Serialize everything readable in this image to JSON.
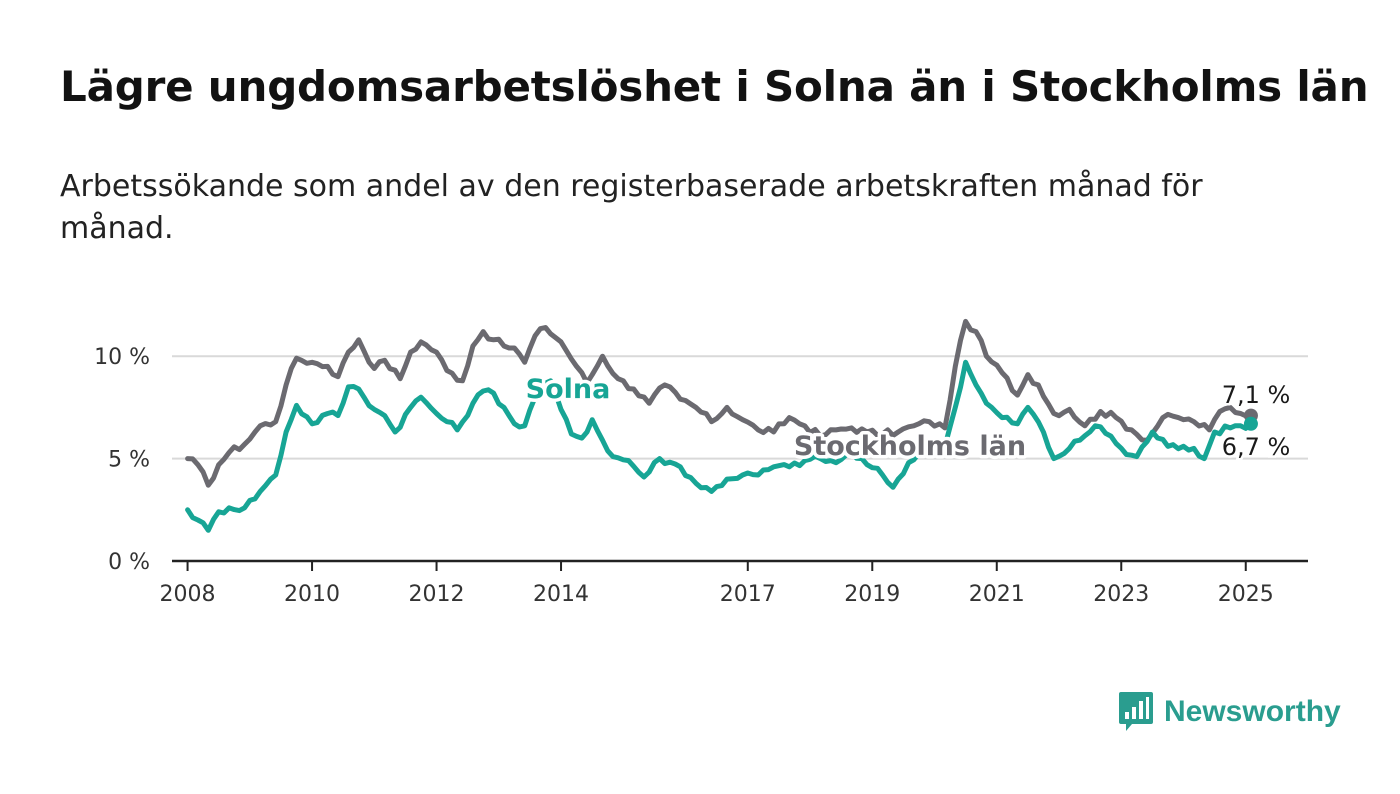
{
  "header": {
    "title": "Lägre ungdomsarbetslöshet i Solna än i Stockholms län",
    "subtitle": "Arbetssökande som andel av den registerbaserade arbetskraften månad för månad."
  },
  "brand": {
    "name": "Newsworthy",
    "icon": "bar-chart-icon",
    "color": "#2a9d8f"
  },
  "chart_data": {
    "type": "line",
    "title": "Lägre ungdomsarbetslöshet i Solna än i Stockholms län",
    "subtitle": "Arbetssökande som andel av den registerbaserade arbetskraften månad för månad.",
    "x_start": "2008-01",
    "xlim": [
      2007.75,
      2026.0
    ],
    "ylim": [
      0,
      12.5
    ],
    "y_ticks": [
      0,
      5,
      10
    ],
    "y_tick_labels": [
      "0 %",
      "5 %",
      "10 %"
    ],
    "x_ticks": [
      2008,
      2010,
      2012,
      2014,
      2017,
      2019,
      2021,
      2023,
      2025
    ],
    "x_tick_labels": [
      "2008",
      "2010",
      "2012",
      "2014",
      "2017",
      "2019",
      "2021",
      "2023",
      "2025"
    ],
    "grid": true,
    "legend": "inline labels",
    "end_labels": [
      "7,1 %",
      "6,7 %"
    ],
    "series": [
      {
        "name": "Stockholms län",
        "color": "#6b6a70",
        "anchors": [
          [
            "2008-01",
            5.0
          ],
          [
            "2008-03",
            4.7
          ],
          [
            "2008-05",
            3.7
          ],
          [
            "2008-07",
            4.7
          ],
          [
            "2008-09",
            5.3
          ],
          [
            "2008-12",
            5.7
          ],
          [
            "2009-03",
            6.6
          ],
          [
            "2009-06",
            6.8
          ],
          [
            "2009-08",
            8.6
          ],
          [
            "2009-10",
            9.9
          ],
          [
            "2010-01",
            9.7
          ],
          [
            "2010-04",
            9.5
          ],
          [
            "2010-06",
            9.0
          ],
          [
            "2010-08",
            10.2
          ],
          [
            "2010-10",
            10.8
          ],
          [
            "2011-01",
            9.4
          ],
          [
            "2011-03",
            9.8
          ],
          [
            "2011-06",
            8.9
          ],
          [
            "2011-08",
            10.2
          ],
          [
            "2011-10",
            10.7
          ],
          [
            "2012-01",
            10.2
          ],
          [
            "2012-03",
            9.3
          ],
          [
            "2012-06",
            8.8
          ],
          [
            "2012-08",
            10.5
          ],
          [
            "2012-10",
            11.2
          ],
          [
            "2012-12",
            10.8
          ],
          [
            "2013-02",
            10.5
          ],
          [
            "2013-04",
            10.4
          ],
          [
            "2013-06",
            9.7
          ],
          [
            "2013-08",
            11.0
          ],
          [
            "2013-10",
            11.4
          ],
          [
            "2014-01",
            10.7
          ],
          [
            "2014-04",
            9.5
          ],
          [
            "2014-06",
            8.7
          ],
          [
            "2014-09",
            10.0
          ],
          [
            "2014-12",
            8.9
          ],
          [
            "2015-03",
            8.4
          ],
          [
            "2015-06",
            7.7
          ],
          [
            "2015-09",
            8.6
          ],
          [
            "2015-12",
            7.9
          ],
          [
            "2016-03",
            7.5
          ],
          [
            "2016-06",
            6.8
          ],
          [
            "2016-09",
            7.5
          ],
          [
            "2016-12",
            6.9
          ],
          [
            "2017-03",
            6.4
          ],
          [
            "2017-06",
            6.3
          ],
          [
            "2017-09",
            7.0
          ],
          [
            "2017-12",
            6.6
          ],
          [
            "2018-03",
            6.1
          ],
          [
            "2018-06",
            6.4
          ],
          [
            "2018-09",
            6.5
          ],
          [
            "2018-12",
            6.3
          ],
          [
            "2019-03",
            6.2
          ],
          [
            "2019-06",
            6.3
          ],
          [
            "2019-09",
            6.6
          ],
          [
            "2019-12",
            6.8
          ],
          [
            "2020-03",
            6.5
          ],
          [
            "2020-05",
            9.5
          ],
          [
            "2020-07",
            11.7
          ],
          [
            "2020-09",
            11.2
          ],
          [
            "2020-11",
            10.0
          ],
          [
            "2021-02",
            9.2
          ],
          [
            "2021-05",
            8.1
          ],
          [
            "2021-07",
            9.1
          ],
          [
            "2021-09",
            8.6
          ],
          [
            "2021-12",
            7.2
          ],
          [
            "2022-03",
            7.4
          ],
          [
            "2022-06",
            6.6
          ],
          [
            "2022-09",
            7.3
          ],
          [
            "2022-12",
            7.0
          ],
          [
            "2023-03",
            6.4
          ],
          [
            "2023-06",
            5.9
          ],
          [
            "2023-09",
            7.0
          ],
          [
            "2023-12",
            7.0
          ],
          [
            "2024-03",
            6.8
          ],
          [
            "2024-06",
            6.4
          ],
          [
            "2024-08",
            7.3
          ],
          [
            "2024-10",
            7.5
          ],
          [
            "2024-12",
            7.2
          ],
          [
            "2025-02",
            7.1
          ]
        ]
      },
      {
        "name": "Solna",
        "color": "#17a595",
        "anchors": [
          [
            "2008-01",
            2.5
          ],
          [
            "2008-03",
            2.0
          ],
          [
            "2008-05",
            1.5
          ],
          [
            "2008-07",
            2.4
          ],
          [
            "2008-09",
            2.6
          ],
          [
            "2008-12",
            2.6
          ],
          [
            "2009-03",
            3.4
          ],
          [
            "2009-06",
            4.2
          ],
          [
            "2009-08",
            6.3
          ],
          [
            "2009-10",
            7.6
          ],
          [
            "2010-01",
            6.7
          ],
          [
            "2010-04",
            7.2
          ],
          [
            "2010-06",
            7.1
          ],
          [
            "2010-08",
            8.5
          ],
          [
            "2010-10",
            8.4
          ],
          [
            "2011-01",
            7.4
          ],
          [
            "2011-03",
            7.1
          ],
          [
            "2011-05",
            6.3
          ],
          [
            "2011-08",
            7.5
          ],
          [
            "2011-10",
            8.0
          ],
          [
            "2012-01",
            7.2
          ],
          [
            "2012-03",
            6.8
          ],
          [
            "2012-05",
            6.4
          ],
          [
            "2012-08",
            7.7
          ],
          [
            "2012-10",
            8.3
          ],
          [
            "2012-12",
            8.2
          ],
          [
            "2013-02",
            7.5
          ],
          [
            "2013-04",
            6.7
          ],
          [
            "2013-06",
            6.6
          ],
          [
            "2013-08",
            8.0
          ],
          [
            "2013-11",
            8.8
          ],
          [
            "2014-01",
            7.4
          ],
          [
            "2014-03",
            6.2
          ],
          [
            "2014-05",
            6.0
          ],
          [
            "2014-07",
            6.9
          ],
          [
            "2014-09",
            5.9
          ],
          [
            "2014-11",
            5.1
          ],
          [
            "2015-02",
            4.9
          ],
          [
            "2015-05",
            4.1
          ],
          [
            "2015-08",
            5.0
          ],
          [
            "2015-12",
            4.6
          ],
          [
            "2016-03",
            3.8
          ],
          [
            "2016-06",
            3.4
          ],
          [
            "2016-09",
            4.0
          ],
          [
            "2016-12",
            4.2
          ],
          [
            "2017-03",
            4.2
          ],
          [
            "2017-06",
            4.6
          ],
          [
            "2017-09",
            4.6
          ],
          [
            "2017-12",
            4.9
          ],
          [
            "2018-03",
            5.0
          ],
          [
            "2018-06",
            4.8
          ],
          [
            "2018-09",
            5.3
          ],
          [
            "2018-12",
            4.7
          ],
          [
            "2019-03",
            4.2
          ],
          [
            "2019-05",
            3.6
          ],
          [
            "2019-08",
            4.8
          ],
          [
            "2019-11",
            5.3
          ],
          [
            "2020-03",
            5.6
          ],
          [
            "2020-05",
            7.5
          ],
          [
            "2020-07",
            9.7
          ],
          [
            "2020-09",
            8.6
          ],
          [
            "2020-11",
            7.7
          ],
          [
            "2021-02",
            7.0
          ],
          [
            "2021-05",
            6.7
          ],
          [
            "2021-07",
            7.5
          ],
          [
            "2021-09",
            6.8
          ],
          [
            "2021-12",
            5.0
          ],
          [
            "2022-03",
            5.5
          ],
          [
            "2022-05",
            5.9
          ],
          [
            "2022-08",
            6.6
          ],
          [
            "2022-11",
            6.1
          ],
          [
            "2023-02",
            5.2
          ],
          [
            "2023-04",
            5.1
          ],
          [
            "2023-07",
            6.3
          ],
          [
            "2023-10",
            5.6
          ],
          [
            "2024-01",
            5.6
          ],
          [
            "2024-03",
            5.5
          ],
          [
            "2024-05",
            5.0
          ],
          [
            "2024-07",
            6.3
          ],
          [
            "2024-10",
            6.5
          ],
          [
            "2024-12",
            6.6
          ],
          [
            "2025-02",
            6.7
          ]
        ]
      }
    ]
  }
}
